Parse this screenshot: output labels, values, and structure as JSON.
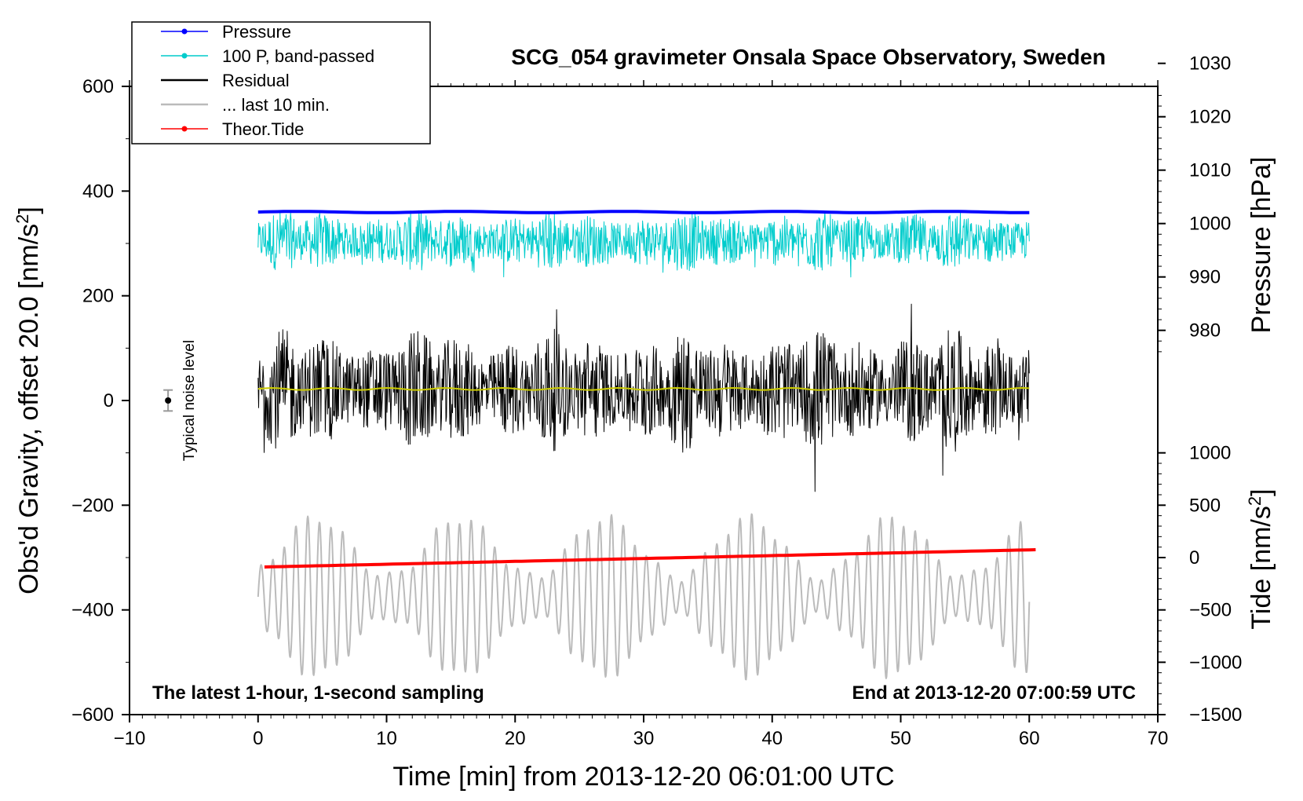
{
  "chart_data": {
    "type": "line",
    "title": "SCG_054 gravimeter Onsala Space Observatory, Sweden",
    "xlabel": "Time [min] from 2013-12-20 06:01:00 UTC",
    "ylabel_left_main": "Obs'd Gravity, offset 20.0 [nm/s",
    "ylabel_left_sup": "2",
    "ylabel_left_end": "]",
    "ylabel_right_pressure": "Pressure [hPa]",
    "ylabel_right_tide_main": "Tide [nm/s",
    "ylabel_right_tide_sup": "2",
    "ylabel_right_tide_end": "]",
    "xlim": [
      -10,
      70
    ],
    "ylim": [
      -600,
      600
    ],
    "x_ticks": [
      -10,
      0,
      10,
      20,
      30,
      40,
      50,
      60,
      70
    ],
    "x_tick_labels": [
      "−10",
      "0",
      "10",
      "20",
      "30",
      "40",
      "50",
      "60",
      "70"
    ],
    "y_ticks": [
      -600,
      -400,
      -200,
      0,
      200,
      400,
      600
    ],
    "y_tick_labels": [
      "−600",
      "−400",
      "−200",
      "0",
      "200",
      "400",
      "600"
    ],
    "pressure_axis": {
      "ticks": [
        980,
        990,
        1000,
        1010,
        1020,
        1030
      ],
      "tick_labels": [
        "980",
        "990",
        "1000",
        "1010",
        "1020",
        "1030"
      ],
      "left_value_at_980": 134,
      "left_units_per_hpa": 10.2
    },
    "tide_axis": {
      "ticks": [
        -1500,
        -1000,
        -500,
        0,
        500,
        1000
      ],
      "tick_labels": [
        "−1500",
        "−1000",
        "−500",
        "0",
        "500",
        "1000"
      ],
      "left_value_at_0": -300,
      "left_units_per_tide": 0.2
    },
    "annotations": {
      "bottom_left": "The latest 1-hour, 1-second sampling",
      "bottom_right": "End at 2013-12-20 07:00:59 UTC",
      "noise_label": "Typical noise level",
      "noise_marker_x": -7,
      "noise_marker_y": 0,
      "noise_marker_err": 20
    },
    "legend": [
      {
        "label": "Pressure",
        "color": "#0000ff",
        "marker": true
      },
      {
        "label": "100 P, band-passed",
        "color": "#00cccc",
        "marker": true
      },
      {
        "label": "Residual",
        "color": "#000000",
        "marker": false
      },
      {
        "label": "... last 10 min.",
        "color": "#bbbbbb",
        "marker": false
      },
      {
        "label": "Theor.Tide",
        "color": "#ff0000",
        "marker": true
      }
    ],
    "series": [
      {
        "name": "Pressure",
        "color": "#0000ff",
        "kind": "flat",
        "x_range": [
          0,
          60
        ],
        "y_start": 360,
        "y_end": 360
      },
      {
        "name": "100 P, band-passed",
        "color": "#00cccc",
        "kind": "noise",
        "x_range": [
          0,
          60
        ],
        "center": 305,
        "amplitude": 60
      },
      {
        "name": "Residual",
        "color": "#000000",
        "kind": "noise",
        "x_range": [
          0,
          60
        ],
        "center": 20,
        "amplitude": 120
      },
      {
        "name": "Residual (smoothed)",
        "color": "#cccc00",
        "kind": "flat",
        "x_range": [
          0,
          60
        ],
        "y_start": 22,
        "y_end": 22
      },
      {
        "name": "... last 10 min.",
        "color": "#bbbbbb",
        "kind": "oscillation",
        "x_range": [
          0,
          60
        ],
        "center": -375,
        "amplitude": 150
      },
      {
        "name": "Theor.Tide",
        "color": "#ff0000",
        "kind": "linear",
        "x_range": [
          0.5,
          60.5
        ],
        "y_start": -318,
        "y_end": -285
      }
    ]
  }
}
